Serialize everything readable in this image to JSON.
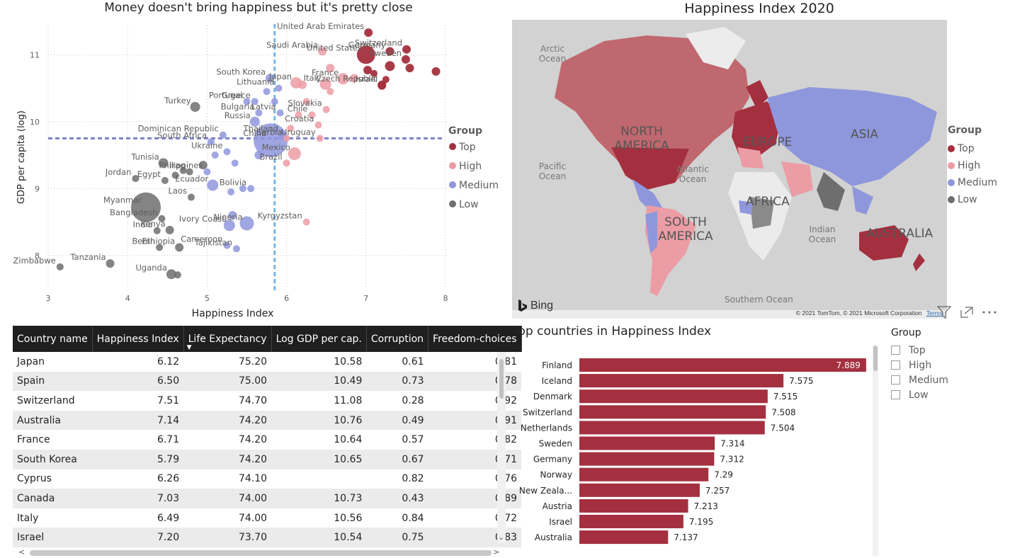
{
  "colors": {
    "top": "#a4303f",
    "high": "#ec9ca4",
    "medium": "#8f97dc",
    "low": "#6e6e6e",
    "refline_h": "#7b80cc",
    "refline_v": "#76b6e8",
    "bar": "#a4303f"
  },
  "scatter": {
    "title": "Money doesn't bring happiness but it's pretty close",
    "legend_title": "Group",
    "legend": [
      {
        "label": "Top",
        "color": "#a4303f"
      },
      {
        "label": "High",
        "color": "#ec9ca4"
      },
      {
        "label": "Medium",
        "color": "#8f97dc"
      },
      {
        "label": "Low",
        "color": "#6e6e6e"
      }
    ]
  },
  "chart_data": [
    {
      "type": "scatter",
      "title": "Money doesn't bring happiness but it's pretty close",
      "xlabel": "Happiness Index",
      "ylabel": "GDP per capita (log)",
      "xlim": [
        3,
        8
      ],
      "ylim": [
        7.5,
        11.5
      ],
      "xticks": [
        "3",
        "4",
        "5",
        "6",
        "7",
        "8"
      ],
      "yticks": [
        "8",
        "9",
        "10",
        "11"
      ],
      "reference_lines": {
        "x": 5.85,
        "y": 9.75
      },
      "legend_title": "Group",
      "grid": true,
      "points": [
        {
          "label": "Switzerland",
          "x": 7.51,
          "y": 11.08,
          "group": "Top",
          "size": 6
        },
        {
          "label": "United Arab Emirates",
          "x": 7.03,
          "y": 11.33,
          "group": "Top",
          "size": 6
        },
        {
          "label": "Germany",
          "x": 7.3,
          "y": 11.05,
          "group": "Top",
          "size": 6
        },
        {
          "label": "Sweden",
          "x": 7.5,
          "y": 10.93,
          "group": "Top",
          "size": 6
        },
        {
          "label": "United States",
          "x": 7.0,
          "y": 11.0,
          "group": "Top",
          "size": 13
        },
        {
          "label": "Czech Republic",
          "x": 7.2,
          "y": 10.55,
          "group": "Top",
          "size": 6
        },
        {
          "label": "Israel",
          "x": 7.2,
          "y": 10.54,
          "group": "Top",
          "size": 6
        },
        {
          "label": "",
          "x": 7.88,
          "y": 10.75,
          "group": "Top",
          "size": 6
        },
        {
          "label": "",
          "x": 7.3,
          "y": 10.83,
          "group": "Top",
          "size": 7
        },
        {
          "label": "",
          "x": 7.55,
          "y": 10.8,
          "group": "Top",
          "size": 6
        },
        {
          "label": "",
          "x": 7.25,
          "y": 10.63,
          "group": "Top",
          "size": 5
        },
        {
          "label": "",
          "x": 7.1,
          "y": 10.72,
          "group": "Top",
          "size": 5
        },
        {
          "label": "",
          "x": 7.02,
          "y": 10.77,
          "group": "Top",
          "size": 6
        },
        {
          "label": "Saudi Arabia",
          "x": 6.45,
          "y": 11.05,
          "group": "High",
          "size": 6
        },
        {
          "label": "Italy",
          "x": 6.49,
          "y": 10.56,
          "group": "High",
          "size": 8
        },
        {
          "label": "France",
          "x": 6.71,
          "y": 10.64,
          "group": "High",
          "size": 8
        },
        {
          "label": "Japan",
          "x": 6.12,
          "y": 10.58,
          "group": "High",
          "size": 8
        },
        {
          "label": "Slovakia",
          "x": 6.5,
          "y": 10.18,
          "group": "High",
          "size": 5
        },
        {
          "label": "Chile",
          "x": 6.32,
          "y": 10.1,
          "group": "High",
          "size": 5
        },
        {
          "label": "Croatia",
          "x": 6.4,
          "y": 9.95,
          "group": "High",
          "size": 5
        },
        {
          "label": "Uruguay",
          "x": 6.42,
          "y": 9.75,
          "group": "High",
          "size": 5
        },
        {
          "label": "Serbia",
          "x": 6.0,
          "y": 9.75,
          "group": "High",
          "size": 5
        },
        {
          "label": "Mexico",
          "x": 6.1,
          "y": 9.52,
          "group": "High",
          "size": 9
        },
        {
          "label": "Brazil",
          "x": 6.0,
          "y": 9.38,
          "group": "High",
          "size": 5
        },
        {
          "label": "Kyrgyzstan",
          "x": 6.25,
          "y": 8.5,
          "group": "High",
          "size": 5
        },
        {
          "label": "",
          "x": 6.55,
          "y": 10.8,
          "group": "High",
          "size": 6
        },
        {
          "label": "",
          "x": 6.85,
          "y": 10.65,
          "group": "High",
          "size": 6
        },
        {
          "label": "",
          "x": 6.25,
          "y": 10.3,
          "group": "High",
          "size": 5
        },
        {
          "label": "",
          "x": 6.55,
          "y": 10.45,
          "group": "High",
          "size": 5
        },
        {
          "label": "",
          "x": 6.15,
          "y": 10.1,
          "group": "High",
          "size": 5
        },
        {
          "label": "",
          "x": 6.05,
          "y": 9.9,
          "group": "High",
          "size": 5
        },
        {
          "label": "",
          "x": 6.2,
          "y": 10.55,
          "group": "High",
          "size": 6
        },
        {
          "label": "South Korea",
          "x": 5.79,
          "y": 10.65,
          "group": "Medium",
          "size": 6
        },
        {
          "label": "Lithuania",
          "x": 5.9,
          "y": 10.5,
          "group": "Medium",
          "size": 5
        },
        {
          "label": "Portugal",
          "x": 5.5,
          "y": 10.3,
          "group": "Medium",
          "size": 5
        },
        {
          "label": "Greece",
          "x": 5.6,
          "y": 10.3,
          "group": "Medium",
          "size": 5
        },
        {
          "label": "Bulgaria",
          "x": 5.65,
          "y": 10.13,
          "group": "Medium",
          "size": 5
        },
        {
          "label": "Latvia",
          "x": 5.92,
          "y": 10.13,
          "group": "Medium",
          "size": 5
        },
        {
          "label": "Russia",
          "x": 5.6,
          "y": 10.0,
          "group": "Medium",
          "size": 7
        },
        {
          "label": "Thailand",
          "x": 5.95,
          "y": 9.8,
          "group": "Medium",
          "size": 6
        },
        {
          "label": "Dominican Republic",
          "x": 5.2,
          "y": 9.8,
          "group": "Medium",
          "size": 5
        },
        {
          "label": "South Africa",
          "x": 5.05,
          "y": 9.7,
          "group": "Medium",
          "size": 5
        },
        {
          "label": "Ukraine",
          "x": 5.25,
          "y": 9.55,
          "group": "Medium",
          "size": 5
        },
        {
          "label": "China",
          "x": 5.8,
          "y": 9.72,
          "group": "Medium",
          "size": 24
        },
        {
          "label": "Philippines",
          "x": 5.0,
          "y": 9.25,
          "group": "Medium",
          "size": 5
        },
        {
          "label": "Ecuador",
          "x": 5.07,
          "y": 9.05,
          "group": "Medium",
          "size": 8
        },
        {
          "label": "Bolivia",
          "x": 5.55,
          "y": 9.0,
          "group": "Medium",
          "size": 5
        },
        {
          "label": "Nigeria",
          "x": 5.5,
          "y": 8.48,
          "group": "Medium",
          "size": 10
        },
        {
          "label": "Ivory Coast",
          "x": 5.28,
          "y": 8.45,
          "group": "Medium",
          "size": 8
        },
        {
          "label": "Cameroon",
          "x": 5.25,
          "y": 8.15,
          "group": "Medium",
          "size": 5
        },
        {
          "label": "Tajikistan",
          "x": 5.37,
          "y": 8.1,
          "group": "Medium",
          "size": 5
        },
        {
          "label": "",
          "x": 5.32,
          "y": 8.6,
          "group": "Medium",
          "size": 6
        },
        {
          "label": "",
          "x": 5.35,
          "y": 9.38,
          "group": "Medium",
          "size": 5
        },
        {
          "label": "",
          "x": 5.45,
          "y": 9.0,
          "group": "Medium",
          "size": 5
        },
        {
          "label": "",
          "x": 5.3,
          "y": 8.95,
          "group": "Medium",
          "size": 5
        },
        {
          "label": "",
          "x": 5.1,
          "y": 9.5,
          "group": "Medium",
          "size": 5
        },
        {
          "label": "",
          "x": 5.85,
          "y": 10.3,
          "group": "Medium",
          "size": 5
        },
        {
          "label": "",
          "x": 5.75,
          "y": 10.45,
          "group": "Medium",
          "size": 5
        },
        {
          "label": "",
          "x": 5.65,
          "y": 9.5,
          "group": "Medium",
          "size": 6
        },
        {
          "label": "Turkey",
          "x": 4.85,
          "y": 10.22,
          "group": "Low",
          "size": 7
        },
        {
          "label": "Tunisia",
          "x": 4.45,
          "y": 9.38,
          "group": "Low",
          "size": 7
        },
        {
          "label": "Egypt",
          "x": 4.47,
          "y": 9.12,
          "group": "Low",
          "size": 5
        },
        {
          "label": "Jordan",
          "x": 4.1,
          "y": 9.15,
          "group": "Low",
          "size": 5
        },
        {
          "label": "Iraq",
          "x": 4.78,
          "y": 9.25,
          "group": "Low",
          "size": 5
        },
        {
          "label": "Laos",
          "x": 4.8,
          "y": 8.87,
          "group": "Low",
          "size": 5
        },
        {
          "label": "Bangladesh",
          "x": 4.43,
          "y": 8.55,
          "group": "Low",
          "size": 5
        },
        {
          "label": "Myanmar",
          "x": 4.23,
          "y": 8.72,
          "group": "Low",
          "size": 21
        },
        {
          "label": "India",
          "x": 4.37,
          "y": 8.37,
          "group": "Low",
          "size": 5
        },
        {
          "label": "Kenya",
          "x": 4.53,
          "y": 8.38,
          "group": "Low",
          "size": 6
        },
        {
          "label": "Benin",
          "x": 4.4,
          "y": 8.12,
          "group": "Low",
          "size": 5
        },
        {
          "label": "Ethiopia",
          "x": 4.65,
          "y": 8.12,
          "group": "Low",
          "size": 6
        },
        {
          "label": "Zimbabwe",
          "x": 3.15,
          "y": 7.83,
          "group": "Low",
          "size": 5
        },
        {
          "label": "Tanzania",
          "x": 3.78,
          "y": 7.88,
          "group": "Low",
          "size": 6
        },
        {
          "label": "Uganda",
          "x": 4.55,
          "y": 7.72,
          "group": "Low",
          "size": 7
        },
        {
          "label": "",
          "x": 4.63,
          "y": 7.71,
          "group": "Low",
          "size": 5
        },
        {
          "label": "",
          "x": 4.7,
          "y": 9.27,
          "group": "Low",
          "size": 5
        },
        {
          "label": "",
          "x": 4.95,
          "y": 9.35,
          "group": "Low",
          "size": 6
        },
        {
          "label": "",
          "x": 4.6,
          "y": 9.2,
          "group": "Low",
          "size": 5
        }
      ]
    },
    {
      "type": "bar",
      "title": "Top countries in Happiness Index",
      "categories": [
        "Finland",
        "Iceland",
        "Denmark",
        "Switzerland",
        "Netherlands",
        "Sweden",
        "Germany",
        "Norway",
        "New Zeala...",
        "Austria",
        "Israel",
        "Australia"
      ],
      "values": [
        7.889,
        7.575,
        7.515,
        7.508,
        7.504,
        7.314,
        7.312,
        7.29,
        7.257,
        7.213,
        7.195,
        7.137
      ],
      "value_labels": [
        "7.889",
        "7.575",
        "7.515",
        "7.508",
        "7.504",
        "7.314",
        "7.312",
        "7.29",
        "7.257",
        "7.213",
        "7.195",
        "7.137"
      ],
      "xlim": [
        6.8,
        7.9
      ]
    },
    {
      "type": "table",
      "columns": [
        "Country name",
        "Happiness Index",
        "Life Expectancy",
        "Log GDP per cap.",
        "Corruption",
        "Freedom-choices"
      ],
      "rows": [
        [
          "Japan",
          "6.12",
          "75.20",
          "10.58",
          "0.61",
          "0.81"
        ],
        [
          "Spain",
          "6.50",
          "75.00",
          "10.49",
          "0.73",
          "0.78"
        ],
        [
          "Switzerland",
          "7.51",
          "74.70",
          "11.08",
          "0.28",
          "0.92"
        ],
        [
          "Australia",
          "7.14",
          "74.20",
          "10.76",
          "0.49",
          "0.91"
        ],
        [
          "France",
          "6.71",
          "74.20",
          "10.64",
          "0.57",
          "0.82"
        ],
        [
          "South Korea",
          "5.79",
          "74.20",
          "10.65",
          "0.67",
          "0.71"
        ],
        [
          "Cyprus",
          "6.26",
          "74.10",
          "",
          "0.82",
          "0.76"
        ],
        [
          "Canada",
          "7.03",
          "74.00",
          "10.73",
          "0.43",
          "0.89"
        ],
        [
          "Italy",
          "6.49",
          "74.00",
          "10.56",
          "0.84",
          "0.72"
        ],
        [
          "Israel",
          "7.20",
          "73.70",
          "10.54",
          "0.75",
          "0.83"
        ]
      ],
      "sort_column": "Life Expectancy",
      "sort_direction": "desc"
    }
  ],
  "map": {
    "title": "Happiness Index 2020",
    "legend_title": "Group",
    "legend": [
      {
        "label": "Top",
        "color": "#a4303f"
      },
      {
        "label": "High",
        "color": "#ec9ca4"
      },
      {
        "label": "Medium",
        "color": "#8f97dc"
      },
      {
        "label": "Low",
        "color": "#6e6e6e"
      }
    ],
    "continents": [
      "NORTH AMERICA",
      "SOUTH AMERICA",
      "EUROPE",
      "ASIA",
      "AFRICA",
      "AUSTRALIA"
    ],
    "oceans": [
      "Arctic Ocean",
      "Pacific Ocean",
      "Atlantic Ocean",
      "Indian Ocean",
      "Southern Ocean"
    ],
    "brand": "Bing",
    "copyright": "© 2021 TomTom, © 2021 Microsoft Corporation",
    "terms": "Terms"
  },
  "slicer": {
    "title": "Group",
    "items": [
      "Top",
      "High",
      "Medium",
      "Low"
    ]
  },
  "icons": [
    "filter-icon",
    "focus-mode-icon",
    "more-options-icon",
    "sort-desc-icon",
    "scroll-left-icon",
    "scroll-right-icon",
    "scroll-down-icon"
  ]
}
